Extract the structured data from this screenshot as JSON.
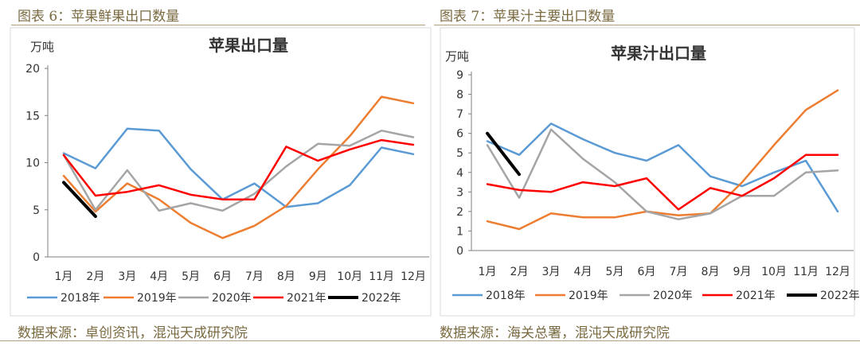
{
  "charts": [
    {
      "caption": "图表 6：苹果鲜果出口数量",
      "source": "数据来源：卓创资讯，混沌天成研究院"
    },
    {
      "caption": "图表 7：苹果汁主要出口数量",
      "source": "数据来源：海关总署，混沌天成研究院"
    }
  ],
  "chart_data": [
    {
      "type": "line",
      "title": "苹果出口量",
      "ylabel": "万吨",
      "ylim": [
        0,
        20
      ],
      "yticks": [
        0,
        5,
        10,
        15,
        20
      ],
      "grid": false,
      "legend_position": "bottom",
      "categories": [
        "1月",
        "2月",
        "3月",
        "4月",
        "5月",
        "6月",
        "7月",
        "8月",
        "9月",
        "10月",
        "11月",
        "12月"
      ],
      "series": [
        {
          "name": "2018年",
          "color": "#5b9bd5",
          "values": [
            11.0,
            9.4,
            13.6,
            13.4,
            9.3,
            6.1,
            7.8,
            5.3,
            5.7,
            7.6,
            11.6,
            10.9
          ]
        },
        {
          "name": "2019年",
          "color": "#ed7d31",
          "values": [
            8.6,
            4.8,
            7.8,
            6.1,
            3.6,
            2.0,
            3.3,
            5.4,
            9.3,
            12.8,
            17.0,
            16.3
          ]
        },
        {
          "name": "2020年",
          "color": "#a5a5a5",
          "values": [
            10.8,
            5.0,
            9.2,
            4.9,
            5.7,
            4.9,
            6.7,
            9.6,
            12.0,
            11.8,
            13.4,
            12.7
          ]
        },
        {
          "name": "2021年",
          "color": "#ff0000",
          "values": [
            10.8,
            6.5,
            6.9,
            7.6,
            6.6,
            6.1,
            6.1,
            11.7,
            10.2,
            11.4,
            12.4,
            11.9
          ]
        },
        {
          "name": "2022年",
          "color": "#000000",
          "values": [
            7.9,
            4.3,
            null,
            null,
            null,
            null,
            null,
            null,
            null,
            null,
            null,
            null
          ]
        }
      ]
    },
    {
      "type": "line",
      "title": "苹果汁出口量",
      "ylabel": "万吨",
      "ylim": [
        0,
        9
      ],
      "yticks": [
        0,
        1,
        2,
        3,
        4,
        5,
        6,
        7,
        8,
        9
      ],
      "grid": false,
      "legend_position": "bottom",
      "categories": [
        "1月",
        "2月",
        "3月",
        "4月",
        "5月",
        "6月",
        "7月",
        "8月",
        "9月",
        "10月",
        "11月",
        "12月"
      ],
      "series": [
        {
          "name": "2018年",
          "color": "#5b9bd5",
          "values": [
            5.6,
            4.9,
            6.5,
            5.7,
            5.0,
            4.6,
            5.4,
            3.8,
            3.3,
            4.0,
            4.6,
            2.0
          ]
        },
        {
          "name": "2019年",
          "color": "#ed7d31",
          "values": [
            1.5,
            1.1,
            1.9,
            1.7,
            1.7,
            2.0,
            1.8,
            1.9,
            3.5,
            5.4,
            7.2,
            8.2
          ]
        },
        {
          "name": "2020年",
          "color": "#a5a5a5",
          "values": [
            5.4,
            2.7,
            6.2,
            4.7,
            3.5,
            2.0,
            1.6,
            1.9,
            2.8,
            2.8,
            4.0,
            4.1
          ]
        },
        {
          "name": "2021年",
          "color": "#ff0000",
          "values": [
            3.4,
            3.1,
            3.0,
            3.5,
            3.3,
            3.7,
            2.1,
            3.2,
            2.8,
            3.7,
            4.9,
            4.9
          ]
        },
        {
          "name": "2022年",
          "color": "#000000",
          "values": [
            6.0,
            3.9,
            null,
            null,
            null,
            null,
            null,
            null,
            null,
            null,
            null,
            null
          ]
        }
      ]
    }
  ]
}
